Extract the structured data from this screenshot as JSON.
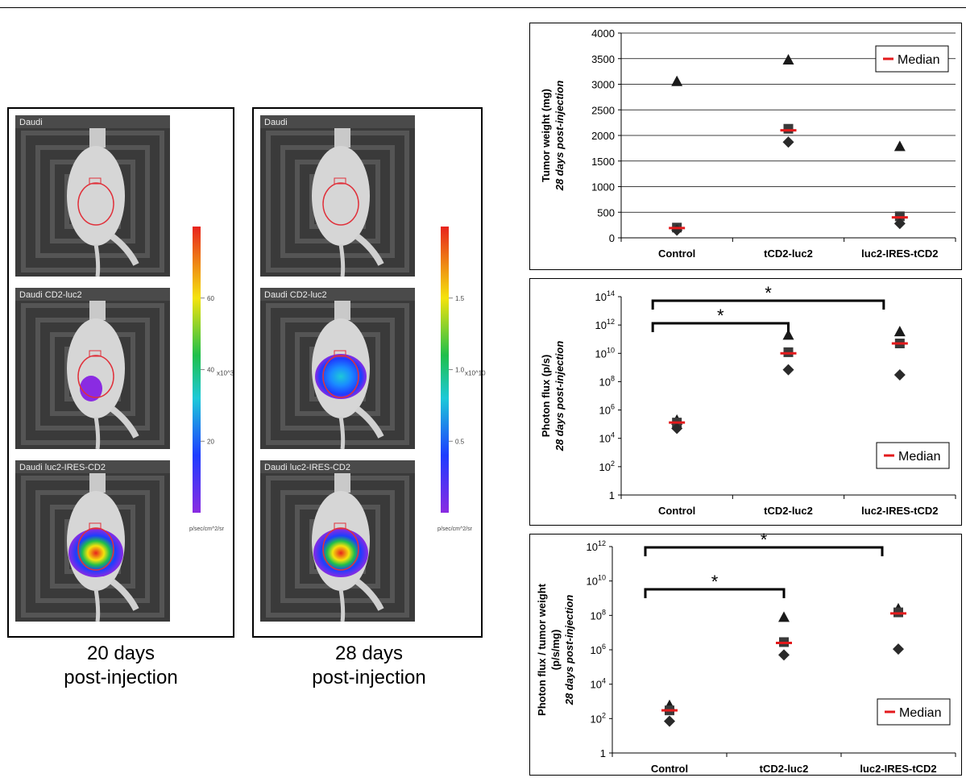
{
  "imaging": {
    "panels": [
      {
        "caption_line1": "20 days",
        "caption_line2": "post-injection",
        "colorbar": {
          "ticks": [
            "60",
            "40",
            "20"
          ],
          "exponent_label": "x10^3",
          "unit": "p/sec/cm^2/sr"
        },
        "mice": [
          {
            "label": "Daudi",
            "signal": "none"
          },
          {
            "label": "Daudi CD2-luc2",
            "signal": "low"
          },
          {
            "label": "Daudi luc2-IRES-CD2",
            "signal": "high"
          }
        ]
      },
      {
        "caption_line1": "28 days",
        "caption_line2": "post-injection",
        "colorbar": {
          "ticks": [
            "1.5",
            "1.0",
            "0.5"
          ],
          "exponent_label": "x10^10",
          "unit": "p/sec/cm^2/sr"
        },
        "mice": [
          {
            "label": "Daudi",
            "signal": "none"
          },
          {
            "label": "Daudi CD2-luc2",
            "signal": "medium"
          },
          {
            "label": "Daudi luc2-IRES-CD2",
            "signal": "high"
          }
        ]
      }
    ],
    "colors": {
      "high": "#e8231d",
      "mid": "#f4e30c",
      "green": "#1fbf4b",
      "cyan": "#1dc9d8",
      "blue": "#1e3cff",
      "violet": "#8a2be2"
    }
  },
  "chart_data": [
    {
      "type": "scatter",
      "ylabel_line1": "Tumor weight (mg)",
      "ylabel_line2": "28 days post-injection",
      "categories": [
        "Control",
        "tCD2-luc2",
        "luc2-IRES-tCD2"
      ],
      "yscale": "linear",
      "ylim": [
        0,
        4000
      ],
      "yticks": [
        0,
        500,
        1000,
        1500,
        2000,
        2500,
        3000,
        3500,
        4000
      ],
      "grid": true,
      "legend": {
        "label": "Median",
        "position": "top-right"
      },
      "series": [
        {
          "marker": "triangle",
          "values": [
            3060,
            3480,
            1790
          ]
        },
        {
          "marker": "square",
          "values": [
            200,
            2130,
            420
          ]
        },
        {
          "marker": "diamond",
          "values": [
            150,
            1870,
            280
          ]
        }
      ],
      "median": [
        190,
        2100,
        400
      ],
      "significance": []
    },
    {
      "type": "scatter",
      "ylabel_line1": "Photon flux (p/s)",
      "ylabel_line2": "28 days post-injection",
      "categories": [
        "Control",
        "tCD2-luc2",
        "luc2-IRES-tCD2"
      ],
      "yscale": "log",
      "ylim_exp": [
        0,
        14
      ],
      "yticks": [
        "1",
        "10^2",
        "10^4",
        "10^6",
        "10^8",
        "10^10",
        "10^12",
        "10^14"
      ],
      "grid": false,
      "legend": {
        "label": "Median",
        "position": "bottom-right"
      },
      "series": [
        {
          "marker": "triangle",
          "values": [
            200000.0,
            200000000000.0,
            350000000000.0
          ]
        },
        {
          "marker": "square",
          "values": [
            130000.0,
            12000000000.0,
            50000000000.0
          ]
        },
        {
          "marker": "diamond",
          "values": [
            50000.0,
            700000000.0,
            300000000.0
          ]
        }
      ],
      "median": [
        130000.0,
        10000000000.0,
        50000000000.0
      ],
      "significance": [
        {
          "from": "Control",
          "to": "tCD2-luc2",
          "label": "*"
        },
        {
          "from": "Control",
          "to": "luc2-IRES-tCD2",
          "label": "*"
        }
      ]
    },
    {
      "type": "scatter",
      "ylabel_line1": "Photon flux / tumor weight",
      "ylabel_line2": "(p/s/mg)",
      "ylabel_line3": "28 days post-injection",
      "categories": [
        "Control",
        "tCD2-luc2",
        "luc2-IRES-tCD2"
      ],
      "yscale": "log",
      "ylim_exp": [
        0,
        12
      ],
      "yticks": [
        "1",
        "10^2",
        "10^4",
        "10^6",
        "10^8",
        "10^10",
        "10^12"
      ],
      "grid": false,
      "legend": {
        "label": "Median",
        "position": "bottom-right"
      },
      "series": [
        {
          "marker": "triangle",
          "values": [
            600,
            80000000.0,
            250000000.0
          ]
        },
        {
          "marker": "square",
          "values": [
            300,
            2800000.0,
            150000000.0
          ]
        },
        {
          "marker": "diamond",
          "values": [
            70,
            500000.0,
            1100000.0
          ]
        }
      ],
      "median": [
        300,
        2500000.0,
        130000000.0
      ],
      "significance": [
        {
          "from": "Control",
          "to": "tCD2-luc2",
          "label": "*"
        },
        {
          "from": "Control",
          "to": "luc2-IRES-tCD2",
          "label": "*"
        }
      ]
    }
  ]
}
